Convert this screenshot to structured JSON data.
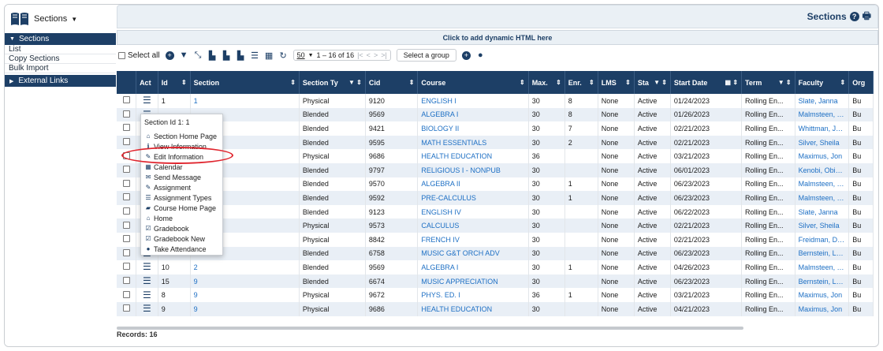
{
  "app": {
    "title": "Sections",
    "title_main": "Sections"
  },
  "nav": {
    "sections_header": "Sections",
    "items": [
      "List",
      "Copy Sections",
      "Bulk Import"
    ],
    "external": "External Links"
  },
  "dynamic_html": "Click to add dynamic HTML here",
  "toolbar": {
    "select_all": "Select all",
    "page_size": "50",
    "range": "1 – 16 of 16",
    "group_button": "Select a group"
  },
  "columns": [
    "Act",
    "Id",
    "Section",
    "Section Ty",
    "Cid",
    "Course",
    "Max.",
    "Enr.",
    "LMS",
    "Sta",
    "Start Date",
    "Term",
    "Faculty",
    "Org"
  ],
  "rows": [
    {
      "id": "1",
      "section": "1",
      "type": "Physical",
      "cid": "9120",
      "course": "ENGLISH I",
      "max": "30",
      "enr": "8",
      "lms": "None",
      "status": "Active",
      "start": "01/24/2023",
      "term": "Rolling En...",
      "faculty": "Slate, Janna",
      "org": "Bu"
    },
    {
      "id": "",
      "section": "",
      "type": "Blended",
      "cid": "9569",
      "course": "ALGEBRA I",
      "max": "30",
      "enr": "8",
      "lms": "None",
      "status": "Active",
      "start": "01/26/2023",
      "term": "Rolling En...",
      "faculty": "Malmsteen, Yng",
      "org": "Bu"
    },
    {
      "id": "",
      "section": "",
      "type": "Blended",
      "cid": "9421",
      "course": "BIOLOGY II",
      "max": "30",
      "enr": "7",
      "lms": "None",
      "status": "Active",
      "start": "02/21/2023",
      "term": "Rolling En...",
      "faculty": "Whittman, Jenni",
      "org": "Bu"
    },
    {
      "id": "",
      "section": "",
      "type": "Blended",
      "cid": "9595",
      "course": "MATH ESSENTIALS",
      "max": "30",
      "enr": "2",
      "lms": "None",
      "status": "Active",
      "start": "02/21/2023",
      "term": "Rolling En...",
      "faculty": "Silver, Sheila",
      "org": "Bu"
    },
    {
      "id": "",
      "section": "",
      "type": "Physical",
      "cid": "9686",
      "course": "HEALTH EDUCATION",
      "max": "36",
      "enr": "",
      "lms": "None",
      "status": "Active",
      "start": "03/21/2023",
      "term": "Rolling En...",
      "faculty": "Maximus, Jon",
      "org": "Bu"
    },
    {
      "id": "",
      "section": "",
      "type": "Blended",
      "cid": "9797",
      "course": "RELIGIOUS I - NONPUB",
      "max": "30",
      "enr": "",
      "lms": "None",
      "status": "Active",
      "start": "06/01/2023",
      "term": "Rolling En...",
      "faculty": "Kenobi, Obiwan",
      "org": "Bu"
    },
    {
      "id": "",
      "section": "",
      "type": "Blended",
      "cid": "9570",
      "course": "ALGEBRA II",
      "max": "30",
      "enr": "1",
      "lms": "None",
      "status": "Active",
      "start": "06/23/2023",
      "term": "Rolling En...",
      "faculty": "Malmsteen, Yng",
      "org": "Bu"
    },
    {
      "id": "",
      "section": "",
      "type": "Blended",
      "cid": "9592",
      "course": "PRE-CALCULUS",
      "max": "30",
      "enr": "1",
      "lms": "None",
      "status": "Active",
      "start": "06/23/2023",
      "term": "Rolling En...",
      "faculty": "Malmsteen, Yng",
      "org": "Bu"
    },
    {
      "id": "",
      "section": "",
      "type": "Blended",
      "cid": "9123",
      "course": "ENGLISH IV",
      "max": "30",
      "enr": "",
      "lms": "None",
      "status": "Active",
      "start": "06/22/2023",
      "term": "Rolling En...",
      "faculty": "Slate, Janna",
      "org": "Bu"
    },
    {
      "id": "",
      "section": "",
      "type": "Physical",
      "cid": "9573",
      "course": "CALCULUS",
      "max": "30",
      "enr": "",
      "lms": "None",
      "status": "Active",
      "start": "02/21/2023",
      "term": "Rolling En...",
      "faculty": "Silver, Sheila",
      "org": "Bu"
    },
    {
      "id": "",
      "section": "12U",
      "type": "Physical",
      "cid": "8842",
      "course": "FRENCH IV",
      "max": "30",
      "enr": "",
      "lms": "None",
      "status": "Active",
      "start": "02/21/2023",
      "term": "Rolling En...",
      "faculty": "Freidman, Debbi",
      "org": "Bu"
    },
    {
      "id": "16",
      "section": "12U",
      "type": "Blended",
      "cid": "6758",
      "course": "MUSIC G&T ORCH ADV",
      "max": "30",
      "enr": "",
      "lms": "None",
      "status": "Active",
      "start": "06/23/2023",
      "term": "Rolling En...",
      "faculty": "Bernstein, Leonz",
      "org": "Bu"
    },
    {
      "id": "10",
      "section": "2",
      "type": "Blended",
      "cid": "9569",
      "course": "ALGEBRA I",
      "max": "30",
      "enr": "1",
      "lms": "None",
      "status": "Active",
      "start": "04/26/2023",
      "term": "Rolling En...",
      "faculty": "Malmsteen, Yng",
      "org": "Bu"
    },
    {
      "id": "15",
      "section": "9",
      "type": "Blended",
      "cid": "6674",
      "course": "MUSIC APPRECIATION",
      "max": "30",
      "enr": "",
      "lms": "None",
      "status": "Active",
      "start": "06/23/2023",
      "term": "Rolling En...",
      "faculty": "Bernstein, Leonz",
      "org": "Bu"
    },
    {
      "id": "8",
      "section": "9",
      "type": "Physical",
      "cid": "9672",
      "course": "PHYS. ED. I",
      "max": "36",
      "enr": "1",
      "lms": "None",
      "status": "Active",
      "start": "03/21/2023",
      "term": "Rolling En...",
      "faculty": "Maximus, Jon",
      "org": "Bu"
    },
    {
      "id": "9",
      "section": "9",
      "type": "Physical",
      "cid": "9686",
      "course": "HEALTH EDUCATION",
      "max": "30",
      "enr": "",
      "lms": "None",
      "status": "Active",
      "start": "04/21/2023",
      "term": "Rolling En...",
      "faculty": "Maximus, Jon",
      "org": "Bu"
    }
  ],
  "popup": {
    "title": "Section Id 1: 1",
    "items": [
      {
        "icon": "home-icon",
        "glyph": "⌂",
        "label": "Section Home Page"
      },
      {
        "icon": "info-icon",
        "glyph": "ℹ",
        "label": "View Information"
      },
      {
        "icon": "edit-icon",
        "glyph": "✎",
        "label": "Edit Information"
      },
      {
        "icon": "calendar-icon",
        "glyph": "▦",
        "label": "Calendar"
      },
      {
        "icon": "envelope-icon",
        "glyph": "✉",
        "label": "Send Message"
      },
      {
        "icon": "pencil-icon",
        "glyph": "✎",
        "label": "Assignment"
      },
      {
        "icon": "list-icon",
        "glyph": "☰",
        "label": "Assignment Types"
      },
      {
        "icon": "book-icon",
        "glyph": "▰",
        "label": "Course Home Page"
      },
      {
        "icon": "home-icon",
        "glyph": "⌂",
        "label": "Home"
      },
      {
        "icon": "checkbox-icon",
        "glyph": "☑",
        "label": "Gradebook"
      },
      {
        "icon": "checkbox-icon",
        "glyph": "☑",
        "label": "Gradebook New"
      },
      {
        "icon": "user-icon",
        "glyph": "●",
        "label": "Take Attendance"
      }
    ]
  },
  "records": "Records: 16",
  "colors": {
    "navy": "#1d3f66",
    "link": "#1d6fc4",
    "highlight": "#e0252e"
  }
}
